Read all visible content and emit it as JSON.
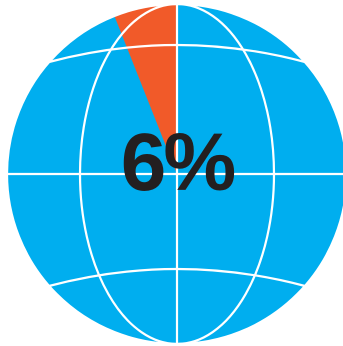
{
  "chart_data": {
    "type": "pie",
    "style": "globe",
    "slices": [
      {
        "label": "6%",
        "value": 6,
        "color": "#f15a29"
      },
      {
        "label": "",
        "value": 94,
        "color": "#00aeef"
      }
    ],
    "value_label": "6%",
    "grid_color": "#ffffff",
    "label_color": "#231f20"
  }
}
